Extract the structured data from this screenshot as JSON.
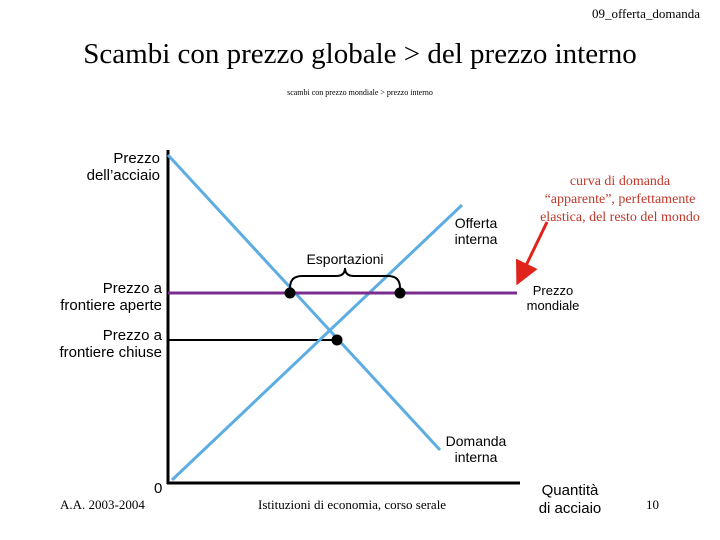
{
  "slide": {
    "header_tag": "09_offerta_domanda",
    "title": "Scambi con prezzo globale > del prezzo interno",
    "subtitle": "scambi con prezzo mondiale > prezzo interno",
    "footer_left": "A.A. 2003-2004",
    "footer_center": "Istituzioni di economia, corso serale",
    "page_number": "10"
  },
  "diagram": {
    "y_axis_label_line1": "Prezzo",
    "y_axis_label_line2": "dell’acciaio",
    "x_axis_label_line1": "Quantità",
    "x_axis_label_line2": "di acciaio",
    "origin_label": "0",
    "supply_label_line1": "Offerta",
    "supply_label_line2": "interna",
    "demand_label_line1": "Domanda",
    "demand_label_line2": "interna",
    "world_price_label_line1": "Prezzo",
    "world_price_label_line2": "mondiale",
    "open_price_label_line1": "Prezzo a",
    "open_price_label_line2": "frontiere aperte",
    "closed_price_label_line1": "Prezzo a",
    "closed_price_label_line2": "frontiere chiuse",
    "exports_label": "Esportazioni",
    "annotation_line1": "curva di domanda",
    "annotation_line2": "“apparente”, perfettamente",
    "annotation_line3": "elastica, del resto del mondo",
    "colors": {
      "curves": "#5dade2",
      "world_price": "#7b2d8e",
      "arrow": "#e0241b",
      "annotation": "#c0392b",
      "axes": "#000000"
    }
  }
}
